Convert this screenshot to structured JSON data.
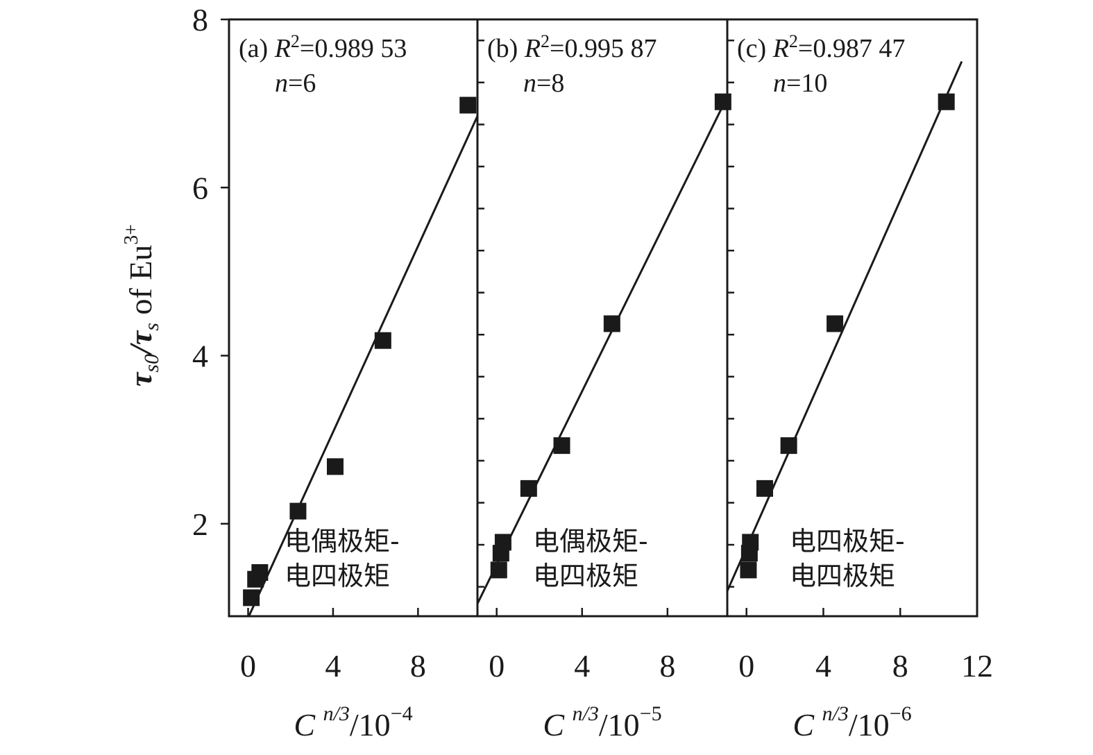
{
  "chart_data": {
    "type": "scatter",
    "ylabel": {
      "base": "τ",
      "sub1": "s0",
      "mid": "/τ",
      "sub2": "s",
      "tail": " of Eu",
      "sup": "3+"
    },
    "ylim": [
      0.9,
      8.0
    ],
    "yticks": [
      "2",
      "4",
      "6",
      "8"
    ],
    "panels": [
      {
        "id": "a",
        "label": "(a)",
        "r2_text": "0.989 53",
        "n_text": "6",
        "note_lines": [
          "电偶极矩-",
          "电四极矩"
        ],
        "xlabel": {
          "base": "C",
          "sup": "n/3",
          "mid": "/10",
          "exp": "−4"
        },
        "xlim": [
          -0.9,
          10.8
        ],
        "xticks": [
          "0",
          "4",
          "8"
        ],
        "points": [
          [
            0.15,
            1.12
          ],
          [
            0.35,
            1.34
          ],
          [
            0.55,
            1.42
          ],
          [
            2.35,
            2.15
          ],
          [
            4.1,
            2.68
          ],
          [
            6.35,
            4.18
          ],
          [
            10.35,
            6.98
          ]
        ],
        "fit": [
          [
            0.0,
            0.88
          ],
          [
            10.8,
            6.85
          ]
        ]
      },
      {
        "id": "b",
        "label": "(b)",
        "r2_text": "0.995 87",
        "n_text": "8",
        "note_lines": [
          "电偶极矩-",
          "电四极矩"
        ],
        "xlabel": {
          "base": "C",
          "sup": "n/3",
          "mid": "/10",
          "exp": "−5"
        },
        "xlim": [
          -0.9,
          10.8
        ],
        "xticks": [
          "0",
          "4",
          "8"
        ],
        "points": [
          [
            0.1,
            1.45
          ],
          [
            0.2,
            1.65
          ],
          [
            0.3,
            1.78
          ],
          [
            1.5,
            2.42
          ],
          [
            3.05,
            2.93
          ],
          [
            5.4,
            4.38
          ],
          [
            10.6,
            7.02
          ]
        ],
        "fit": [
          [
            -0.9,
            1.05
          ],
          [
            10.8,
            7.08
          ]
        ]
      },
      {
        "id": "c",
        "label": "(c)",
        "r2_text": "0.987 47",
        "n_text": "10",
        "note_lines": [
          "电四极矩-",
          "电四极矩"
        ],
        "xlabel": {
          "base": "C",
          "sup": "n/3",
          "mid": "/10",
          "exp": "−6"
        },
        "xlim": [
          -1.0,
          12.0
        ],
        "xticks": [
          "0",
          "4",
          "8",
          "12"
        ],
        "points": [
          [
            0.1,
            1.45
          ],
          [
            0.15,
            1.65
          ],
          [
            0.2,
            1.78
          ],
          [
            0.95,
            2.42
          ],
          [
            2.2,
            2.93
          ],
          [
            4.6,
            4.38
          ],
          [
            10.4,
            7.02
          ]
        ],
        "fit": [
          [
            -1.0,
            1.2
          ],
          [
            11.2,
            7.5
          ]
        ]
      }
    ]
  }
}
